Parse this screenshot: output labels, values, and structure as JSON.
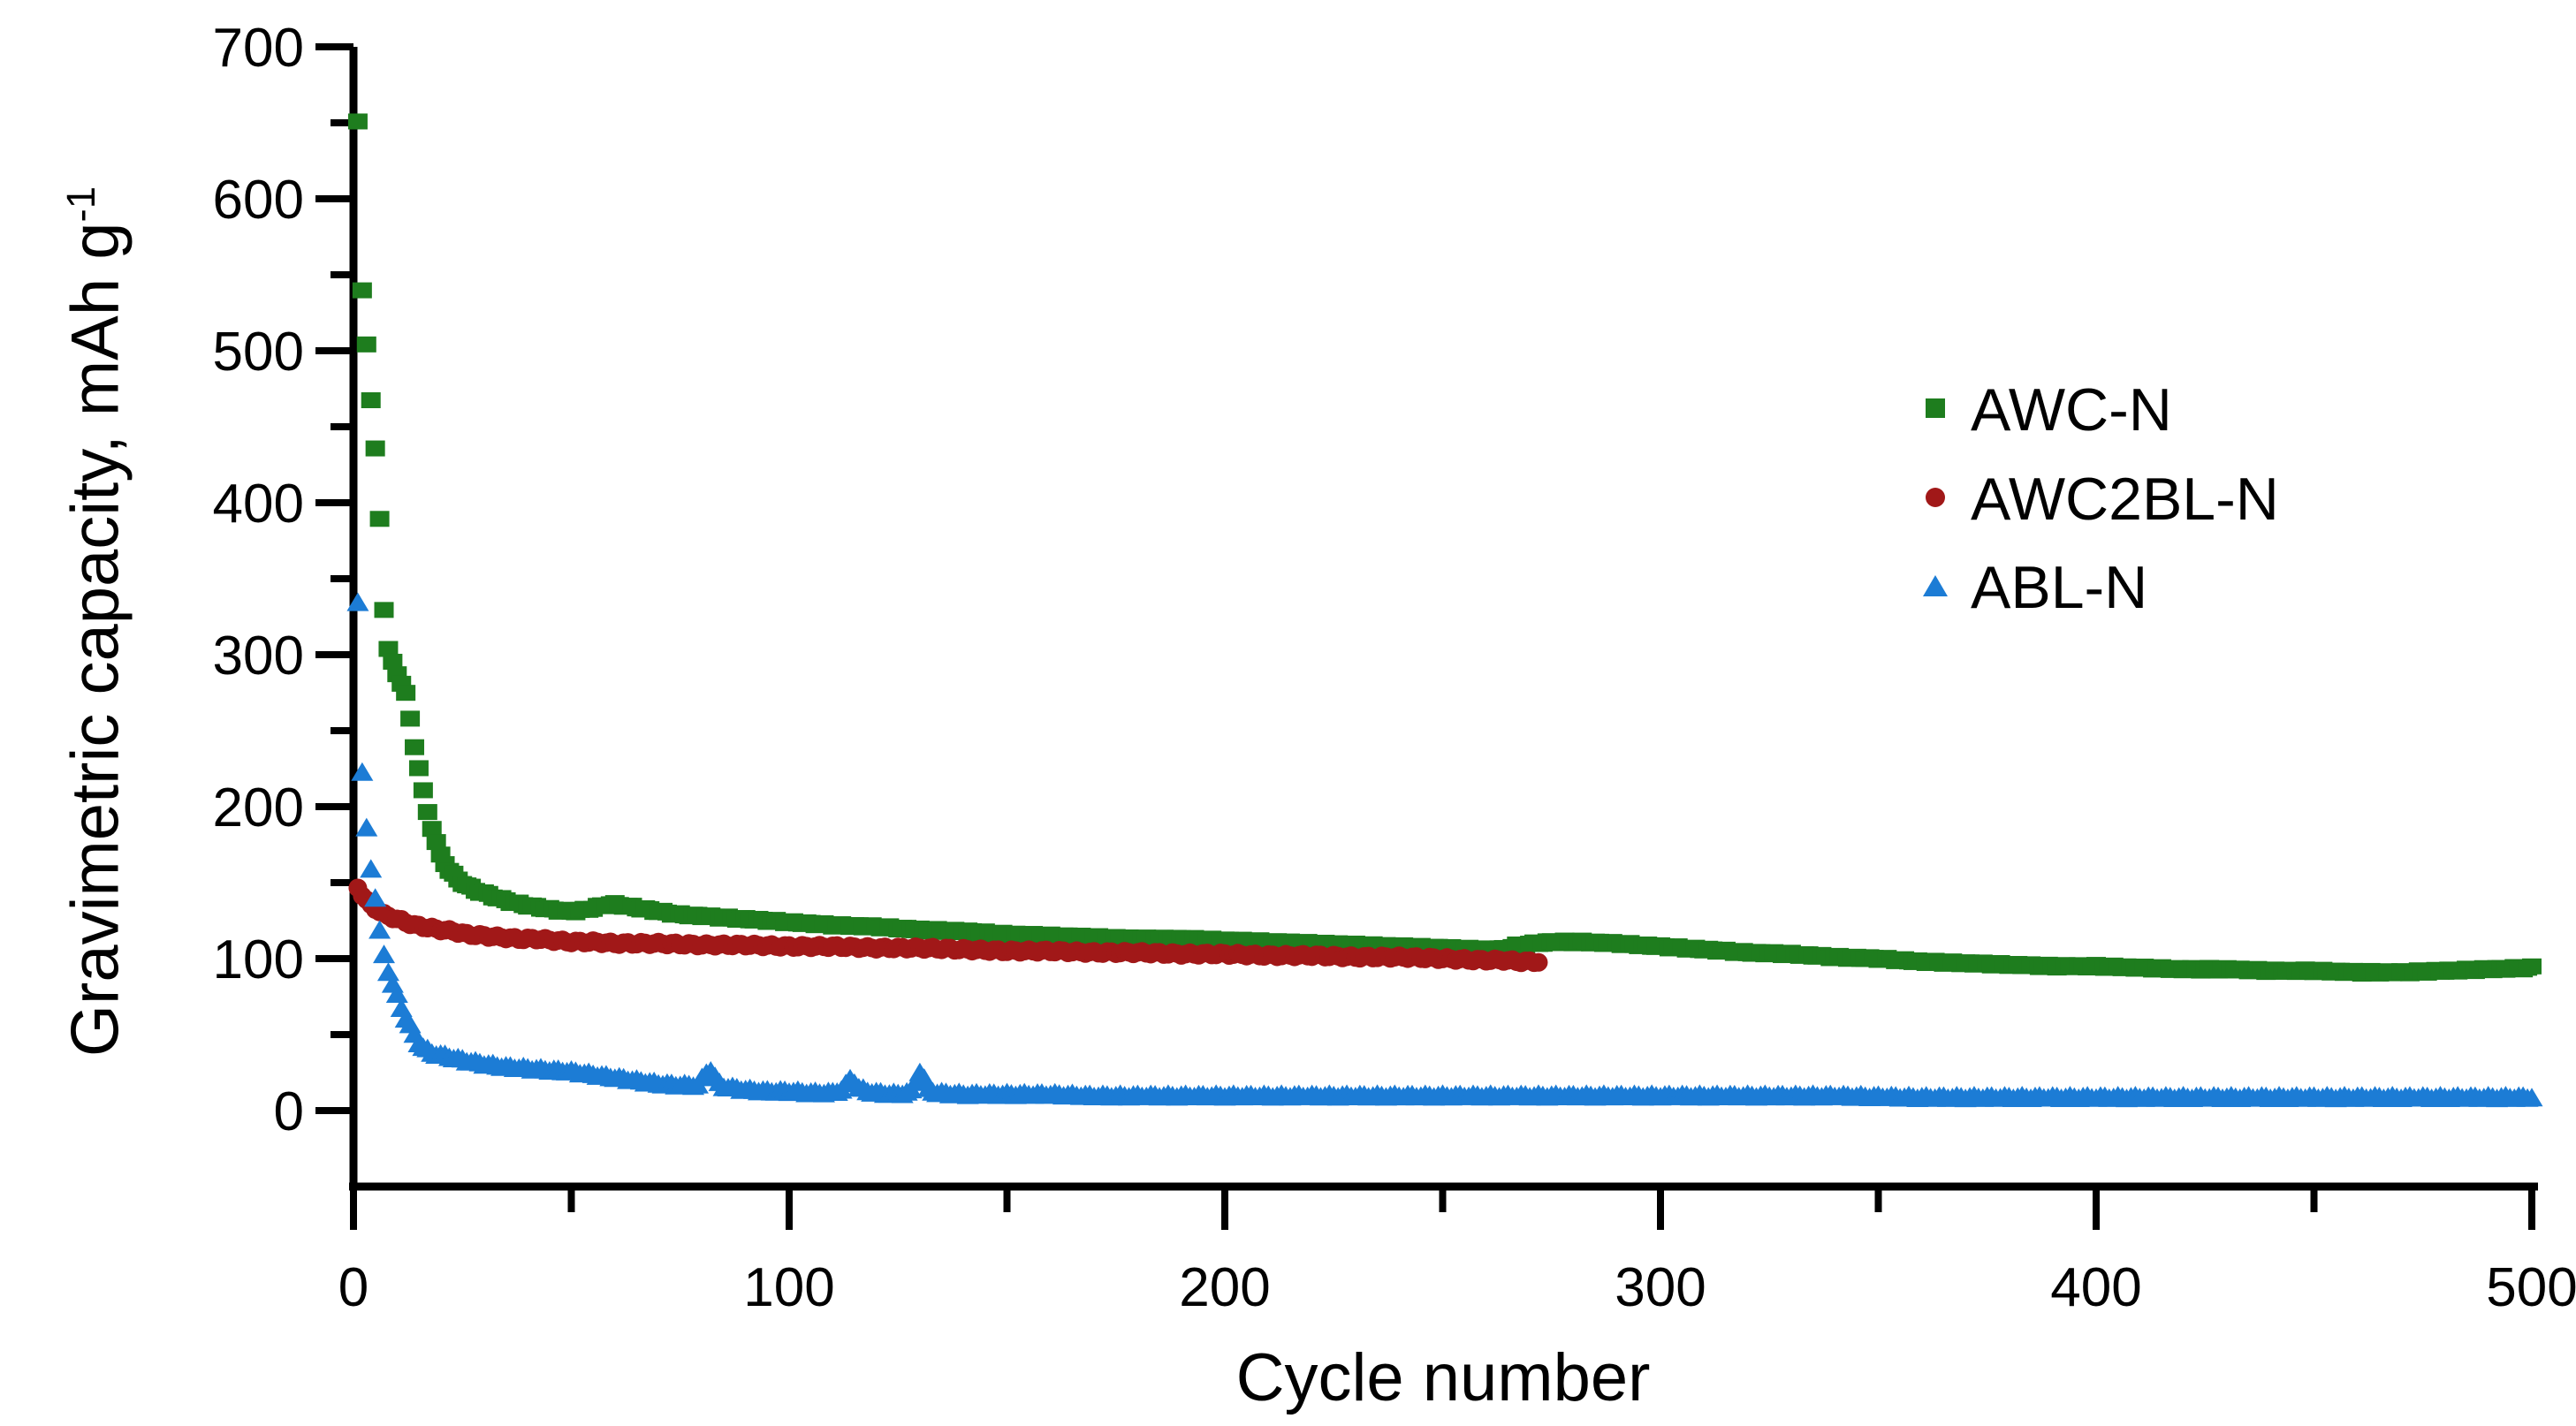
{
  "chart_data": {
    "type": "scatter",
    "title": "",
    "xlabel": "Cycle number",
    "ylabel": "Gravimetric capacity, mAh g",
    "ylabel_sup": "-1",
    "xlim": [
      0,
      500
    ],
    "ylim": [
      -50,
      700
    ],
    "grid": false,
    "legend_position": "upper-right-inside",
    "background_color": "#FFFFFF",
    "axis_color": "#000000",
    "x_major_ticks": [
      0,
      100,
      200,
      300,
      400,
      500
    ],
    "x_minor_ticks": [
      50,
      150,
      250,
      350,
      450
    ],
    "y_major_ticks": [
      0,
      100,
      200,
      300,
      400,
      500,
      600,
      700
    ],
    "y_minor_ticks": [
      50,
      150,
      250,
      350,
      450,
      550,
      650
    ],
    "series": [
      {
        "name": "AWC-N",
        "marker": "square",
        "color": "#1E7D1E",
        "start_cycle": 1,
        "end_cycle": 500,
        "anchors": [
          [
            1,
            650
          ],
          [
            2,
            540
          ],
          [
            3,
            505
          ],
          [
            4,
            467
          ],
          [
            5,
            435
          ],
          [
            6,
            390
          ],
          [
            7,
            330
          ],
          [
            8,
            303
          ],
          [
            9,
            295
          ],
          [
            10,
            288
          ],
          [
            11,
            281
          ],
          [
            12,
            274
          ],
          [
            13,
            258
          ],
          [
            14,
            240
          ],
          [
            15,
            225
          ],
          [
            16,
            210
          ],
          [
            17,
            197
          ],
          [
            18,
            186
          ],
          [
            19,
            176
          ],
          [
            20,
            168
          ],
          [
            22,
            158
          ],
          [
            24,
            152
          ],
          [
            26,
            148
          ],
          [
            28,
            145
          ],
          [
            30,
            143
          ],
          [
            34,
            139
          ],
          [
            38,
            136
          ],
          [
            42,
            134
          ],
          [
            46,
            132
          ],
          [
            50,
            131
          ],
          [
            53,
            132
          ],
          [
            56,
            134
          ],
          [
            59,
            136
          ],
          [
            62,
            135
          ],
          [
            66,
            133
          ],
          [
            70,
            131
          ],
          [
            75,
            129
          ],
          [
            80,
            128
          ],
          [
            90,
            126
          ],
          [
            100,
            124
          ],
          [
            110,
            122
          ],
          [
            120,
            121
          ],
          [
            130,
            119
          ],
          [
            140,
            118
          ],
          [
            150,
            116
          ],
          [
            160,
            115
          ],
          [
            170,
            114
          ],
          [
            180,
            113
          ],
          [
            190,
            113
          ],
          [
            200,
            112
          ],
          [
            210,
            111
          ],
          [
            220,
            110
          ],
          [
            230,
            109
          ],
          [
            240,
            108
          ],
          [
            250,
            107
          ],
          [
            258,
            106
          ],
          [
            263,
            106
          ],
          [
            268,
            109
          ],
          [
            275,
            111
          ],
          [
            282,
            111
          ],
          [
            290,
            110
          ],
          [
            300,
            108
          ],
          [
            310,
            106
          ],
          [
            320,
            104
          ],
          [
            330,
            103
          ],
          [
            340,
            101
          ],
          [
            350,
            100
          ],
          [
            360,
            98
          ],
          [
            370,
            97
          ],
          [
            380,
            96
          ],
          [
            390,
            95
          ],
          [
            400,
            95
          ],
          [
            410,
            94
          ],
          [
            420,
            93
          ],
          [
            430,
            93
          ],
          [
            440,
            92
          ],
          [
            450,
            92
          ],
          [
            460,
            91
          ],
          [
            470,
            91
          ],
          [
            480,
            92
          ],
          [
            490,
            93
          ],
          [
            500,
            94
          ]
        ]
      },
      {
        "name": "AWC2BL-N",
        "marker": "circle",
        "color": "#A11818",
        "start_cycle": 1,
        "end_cycle": 272,
        "anchors": [
          [
            1,
            147
          ],
          [
            2,
            142
          ],
          [
            3,
            138
          ],
          [
            4,
            135
          ],
          [
            5,
            133
          ],
          [
            6,
            131
          ],
          [
            7,
            129
          ],
          [
            8,
            128
          ],
          [
            10,
            126
          ],
          [
            12,
            124
          ],
          [
            14,
            122
          ],
          [
            16,
            121
          ],
          [
            18,
            120
          ],
          [
            20,
            119
          ],
          [
            23,
            118
          ],
          [
            26,
            116
          ],
          [
            30,
            115
          ],
          [
            34,
            114
          ],
          [
            38,
            113
          ],
          [
            42,
            113
          ],
          [
            46,
            112
          ],
          [
            50,
            111
          ],
          [
            55,
            111
          ],
          [
            60,
            110
          ],
          [
            70,
            110
          ],
          [
            80,
            109
          ],
          [
            90,
            109
          ],
          [
            100,
            108
          ],
          [
            110,
            108
          ],
          [
            120,
            107
          ],
          [
            130,
            107
          ],
          [
            140,
            106
          ],
          [
            150,
            105
          ],
          [
            160,
            105
          ],
          [
            170,
            104
          ],
          [
            180,
            104
          ],
          [
            190,
            103
          ],
          [
            200,
            103
          ],
          [
            210,
            102
          ],
          [
            220,
            102
          ],
          [
            230,
            101
          ],
          [
            240,
            101
          ],
          [
            250,
            100
          ],
          [
            258,
            99
          ],
          [
            264,
            99
          ],
          [
            268,
            98
          ],
          [
            272,
            98
          ]
        ]
      },
      {
        "name": "ABL-N",
        "marker": "triangle",
        "color": "#1C7CD5",
        "start_cycle": 1,
        "end_cycle": 500,
        "anchors": [
          [
            1,
            335
          ],
          [
            2,
            222
          ],
          [
            3,
            186
          ],
          [
            4,
            160
          ],
          [
            5,
            140
          ],
          [
            6,
            118
          ],
          [
            7,
            103
          ],
          [
            8,
            92
          ],
          [
            9,
            83
          ],
          [
            10,
            76
          ],
          [
            11,
            68
          ],
          [
            12,
            61
          ],
          [
            13,
            56
          ],
          [
            14,
            50
          ],
          [
            15,
            45
          ],
          [
            16,
            42
          ],
          [
            17,
            40
          ],
          [
            18,
            38
          ],
          [
            20,
            37
          ],
          [
            23,
            35
          ],
          [
            26,
            33
          ],
          [
            30,
            31
          ],
          [
            35,
            29
          ],
          [
            40,
            28
          ],
          [
            45,
            27
          ],
          [
            50,
            26
          ],
          [
            55,
            24
          ],
          [
            60,
            22
          ],
          [
            65,
            20
          ],
          [
            70,
            18
          ],
          [
            75,
            17
          ],
          [
            79,
            17
          ],
          [
            80,
            21
          ],
          [
            81,
            25
          ],
          [
            82,
            27
          ],
          [
            83,
            22
          ],
          [
            84,
            18
          ],
          [
            85,
            16
          ],
          [
            90,
            14
          ],
          [
            95,
            13
          ],
          [
            100,
            13
          ],
          [
            105,
            12
          ],
          [
            110,
            12
          ],
          [
            112,
            14
          ],
          [
            113,
            17
          ],
          [
            114,
            21
          ],
          [
            115,
            19
          ],
          [
            116,
            15
          ],
          [
            118,
            13
          ],
          [
            120,
            12
          ],
          [
            125,
            11
          ],
          [
            128,
            13
          ],
          [
            129,
            19
          ],
          [
            130,
            26
          ],
          [
            131,
            21
          ],
          [
            132,
            14
          ],
          [
            134,
            12
          ],
          [
            140,
            11
          ],
          [
            150,
            11
          ],
          [
            160,
            11
          ],
          [
            170,
            10
          ],
          [
            180,
            10
          ],
          [
            200,
            10
          ],
          [
            220,
            10
          ],
          [
            240,
            10
          ],
          [
            260,
            10
          ],
          [
            280,
            10
          ],
          [
            300,
            10
          ],
          [
            320,
            10
          ],
          [
            340,
            10
          ],
          [
            360,
            9
          ],
          [
            380,
            9
          ],
          [
            400,
            9
          ],
          [
            420,
            9
          ],
          [
            440,
            9
          ],
          [
            460,
            9
          ],
          [
            480,
            9
          ],
          [
            500,
            9
          ]
        ]
      }
    ],
    "legend": [
      {
        "label": "AWC-N",
        "marker_icon": "square-marker-icon",
        "color": "#1E7D1E"
      },
      {
        "label": "AWC2BL-N",
        "marker_icon": "circle-marker-icon",
        "color": "#A11818"
      },
      {
        "label": "ABL-N",
        "marker_icon": "triangle-marker-icon",
        "color": "#1C7CD5"
      }
    ]
  }
}
